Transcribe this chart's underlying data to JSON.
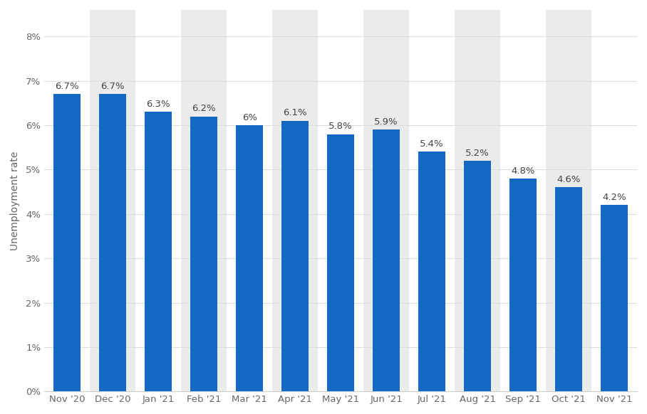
{
  "categories": [
    "Nov '20",
    "Dec '20",
    "Jan '21",
    "Feb '21",
    "Mar '21",
    "Apr '21",
    "May '21",
    "Jun '21",
    "Jul '21",
    "Aug '21",
    "Sep '21",
    "Oct '21",
    "Nov '21"
  ],
  "values": [
    6.7,
    6.7,
    6.3,
    6.2,
    6.0,
    6.1,
    5.8,
    5.9,
    5.4,
    5.2,
    4.8,
    4.6,
    4.2
  ],
  "labels": [
    "6.7%",
    "6.7%",
    "6.3%",
    "6.2%",
    "6%",
    "6.1%",
    "5.8%",
    "5.9%",
    "5.4%",
    "5.2%",
    "4.8%",
    "4.6%",
    "4.2%"
  ],
  "bar_color": "#1469c3",
  "ylabel": "Unemployment rate",
  "yticks": [
    0,
    1,
    2,
    3,
    4,
    5,
    6,
    7,
    8
  ],
  "ytick_labels": [
    "0%",
    "1%",
    "2%",
    "3%",
    "4%",
    "5%",
    "6%",
    "7%",
    "8%"
  ],
  "ylim": [
    0,
    8.6
  ],
  "background_color": "#ffffff",
  "plot_bg_color": "#ffffff",
  "grid_color": "#dddddd",
  "bar_label_color": "#444444",
  "bar_label_fontsize": 9.5,
  "ylabel_fontsize": 10,
  "tick_fontsize": 9.5,
  "bar_width": 0.6,
  "stripe_light": "#ffffff",
  "stripe_dark": "#ebebeb"
}
